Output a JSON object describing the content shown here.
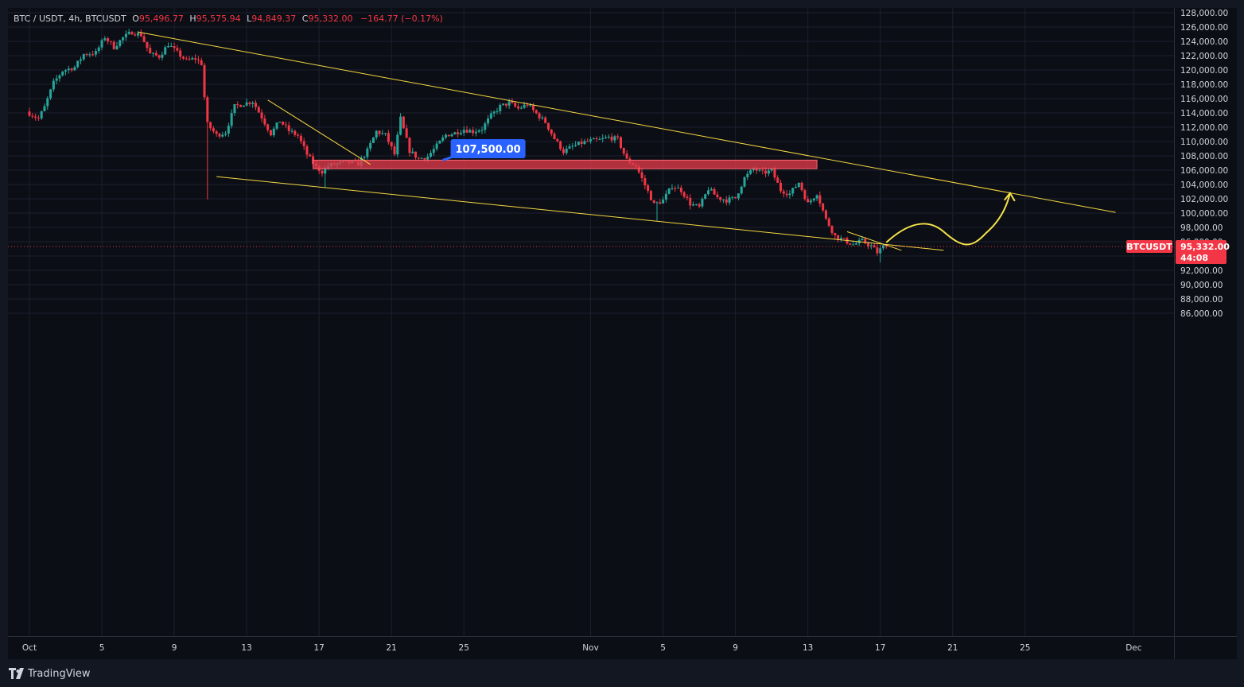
{
  "header": {
    "symbol": "BTC / USDT, 4h, BTCUSDT",
    "open_label": "O",
    "open": "95,496.77",
    "high_label": "H",
    "high": "95,575.94",
    "low_label": "L",
    "low": "94,849.37",
    "close_label": "C",
    "close": "95,332.00",
    "change": "−164.77 (−0.17%)"
  },
  "footer": {
    "brand": "TradingView"
  },
  "colors": {
    "up": "#26a69a",
    "down": "#f23645",
    "trendline": "#f5d742",
    "zone": "#e03a4a",
    "callout": "#2962ff",
    "projection": "#f5e34a"
  },
  "chart_data": {
    "type": "candlestick",
    "symbol": "BTCUSDT",
    "timeframe": "4h",
    "x_axis": {
      "ticks": [
        "Oct",
        "5",
        "9",
        "13",
        "17",
        "21",
        "25",
        "Nov",
        "5",
        "9",
        "13",
        "17",
        "21",
        "25",
        "Dec"
      ],
      "start": "2025-10-01",
      "end": "2025-12-01"
    },
    "y_axis": {
      "ylim": [
        84800,
        128700
      ],
      "ticks": [
        "128,000.00",
        "126,000.00",
        "124,000.00",
        "122,000.00",
        "120,000.00",
        "118,000.00",
        "116,000.00",
        "114,000.00",
        "112,000.00",
        "110,000.00",
        "108,000.00",
        "106,000.00",
        "104,000.00",
        "102,000.00",
        "100,000.00",
        "98,000.00",
        "96,000.00",
        "94,000.00",
        "92,000.00",
        "90,000.00",
        "88,000.00",
        "86,000.00"
      ]
    },
    "price_path": [
      [
        "2025-10-01 00:00",
        114200
      ],
      [
        "2025-10-01 16:00",
        113200
      ],
      [
        "2025-10-02 00:00",
        114800
      ],
      [
        "2025-10-02 12:00",
        118200
      ],
      [
        "2025-10-03 00:00",
        119900
      ],
      [
        "2025-10-03 16:00",
        120400
      ],
      [
        "2025-10-04 04:00",
        122200
      ],
      [
        "2025-10-04 20:00",
        122400
      ],
      [
        "2025-10-05 08:00",
        124600
      ],
      [
        "2025-10-05 20:00",
        123200
      ],
      [
        "2025-10-06 08:00",
        124500
      ],
      [
        "2025-10-06 20:00",
        125300
      ],
      [
        "2025-10-07 08:00",
        124900
      ],
      [
        "2025-10-07 20:00",
        122200
      ],
      [
        "2025-10-08 08:00",
        121900
      ],
      [
        "2025-10-08 20:00",
        123600
      ],
      [
        "2025-10-09 08:00",
        122400
      ],
      [
        "2025-10-09 20:00",
        121300
      ],
      [
        "2025-10-10 08:00",
        121600
      ],
      [
        "2025-10-10 16:00",
        120900
      ],
      [
        "2025-10-10 20:00",
        116200
      ],
      [
        "2025-10-11 00:00",
        112400
      ],
      [
        "2025-10-11 12:00",
        110900
      ],
      [
        "2025-10-12 00:00",
        111300
      ],
      [
        "2025-10-12 12:00",
        114900
      ],
      [
        "2025-10-13 00:00",
        115300
      ],
      [
        "2025-10-13 12:00",
        115600
      ],
      [
        "2025-10-14 00:00",
        113400
      ],
      [
        "2025-10-14 12:00",
        111100
      ],
      [
        "2025-10-15 00:00",
        112900
      ],
      [
        "2025-10-15 12:00",
        111500
      ],
      [
        "2025-10-16 00:00",
        110800
      ],
      [
        "2025-10-16 12:00",
        108200
      ],
      [
        "2025-10-17 00:00",
        106400
      ],
      [
        "2025-10-17 08:00",
        105800
      ],
      [
        "2025-10-17 16:00",
        106600
      ],
      [
        "2025-10-18 04:00",
        106900
      ],
      [
        "2025-10-18 20:00",
        107100
      ],
      [
        "2025-10-19 08:00",
        106900
      ],
      [
        "2025-10-19 20:00",
        108700
      ],
      [
        "2025-10-20 08:00",
        111400
      ],
      [
        "2025-10-20 20:00",
        110900
      ],
      [
        "2025-10-21 08:00",
        108200
      ],
      [
        "2025-10-21 16:00",
        113200
      ],
      [
        "2025-10-22 04:00",
        108700
      ],
      [
        "2025-10-22 16:00",
        107600
      ],
      [
        "2025-10-23 04:00",
        107900
      ],
      [
        "2025-10-23 16:00",
        109400
      ],
      [
        "2025-10-24 04:00",
        110900
      ],
      [
        "2025-10-24 16:00",
        111200
      ],
      [
        "2025-10-25 04:00",
        111700
      ],
      [
        "2025-10-25 16:00",
        111400
      ],
      [
        "2025-10-26 04:00",
        111800
      ],
      [
        "2025-10-26 16:00",
        113600
      ],
      [
        "2025-10-27 04:00",
        114900
      ],
      [
        "2025-10-27 16:00",
        115400
      ],
      [
        "2025-10-28 04:00",
        114600
      ],
      [
        "2025-10-28 16:00",
        115200
      ],
      [
        "2025-10-29 04:00",
        113900
      ],
      [
        "2025-10-29 16:00",
        112700
      ],
      [
        "2025-10-30 04:00",
        110400
      ],
      [
        "2025-10-30 16:00",
        108600
      ],
      [
        "2025-10-31 04:00",
        109300
      ],
      [
        "2025-10-31 16:00",
        109800
      ],
      [
        "2025-11-01 04:00",
        110100
      ],
      [
        "2025-11-01 16:00",
        110200
      ],
      [
        "2025-11-02 04:00",
        110600
      ],
      [
        "2025-11-02 16:00",
        110300
      ],
      [
        "2025-11-03 04:00",
        107400
      ],
      [
        "2025-11-03 16:00",
        106600
      ],
      [
        "2025-11-04 04:00",
        103900
      ],
      [
        "2025-11-04 16:00",
        101200
      ],
      [
        "2025-11-05 04:00",
        101800
      ],
      [
        "2025-11-05 16:00",
        103800
      ],
      [
        "2025-11-06 04:00",
        103200
      ],
      [
        "2025-11-06 16:00",
        101300
      ],
      [
        "2025-11-07 04:00",
        100800
      ],
      [
        "2025-11-07 16:00",
        103400
      ],
      [
        "2025-11-08 04:00",
        102200
      ],
      [
        "2025-11-08 16:00",
        101800
      ],
      [
        "2025-11-09 04:00",
        102100
      ],
      [
        "2025-11-09 16:00",
        104900
      ],
      [
        "2025-11-10 04:00",
        106200
      ],
      [
        "2025-11-10 16:00",
        105600
      ],
      [
        "2025-11-11 04:00",
        105900
      ],
      [
        "2025-11-11 16:00",
        103200
      ],
      [
        "2025-11-12 04:00",
        102700
      ],
      [
        "2025-11-12 16:00",
        104300
      ],
      [
        "2025-11-13 04:00",
        101300
      ],
      [
        "2025-11-13 16:00",
        102800
      ],
      [
        "2025-11-14 04:00",
        99100
      ],
      [
        "2025-11-14 16:00",
        96800
      ],
      [
        "2025-11-15 04:00",
        96200
      ],
      [
        "2025-11-15 16:00",
        95600
      ],
      [
        "2025-11-16 04:00",
        96100
      ],
      [
        "2025-11-16 16:00",
        95400
      ],
      [
        "2025-11-17 00:00",
        94500
      ],
      [
        "2025-11-17 08:00",
        95332
      ]
    ],
    "levels": {
      "support_zone": [
        106200,
        107400
      ],
      "callout": "107,500.00"
    },
    "last_price": {
      "symbol": "BTCUSDT",
      "value": "95,332.00",
      "countdown": "44:08"
    }
  }
}
